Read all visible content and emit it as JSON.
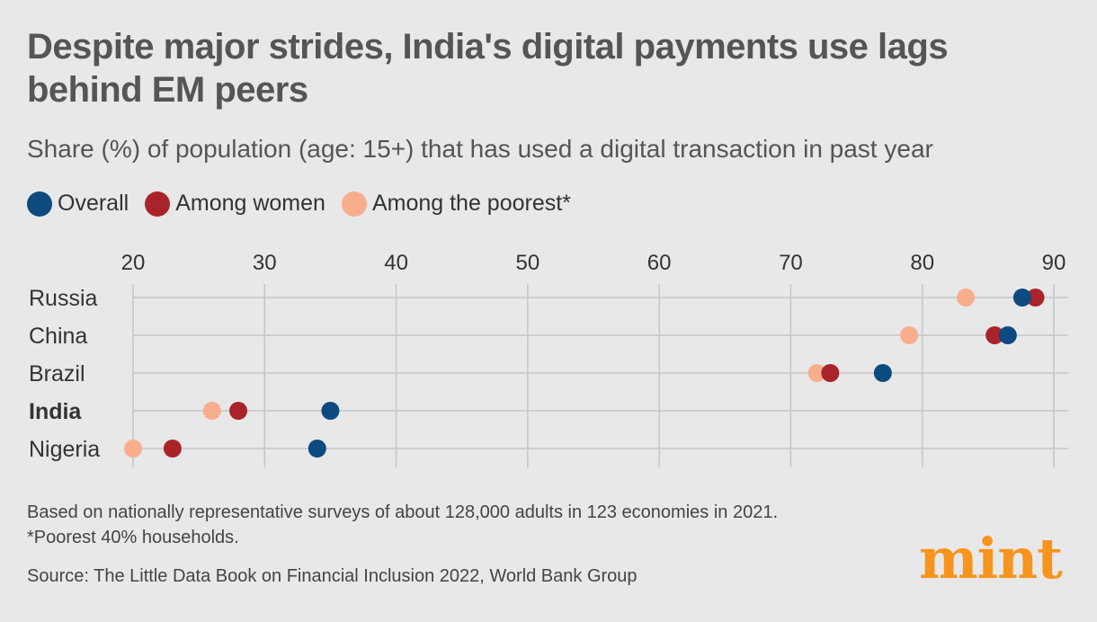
{
  "header": {
    "title": "Despite major strides, India's digital payments use lags behind EM peers",
    "subtitle": "Share (%) of population (age: 15+) that has used a digital transaction in past year"
  },
  "legend": [
    {
      "label": "Overall",
      "color": "#0d4a80"
    },
    {
      "label": "Among women",
      "color": "#a8242a"
    },
    {
      "label": "Among the poorest*",
      "color": "#f8ae8d"
    }
  ],
  "chart_data": {
    "type": "scatter",
    "categories": [
      "Russia",
      "China",
      "Brazil",
      "India",
      "Nigeria"
    ],
    "highlight_category": "India",
    "xticks": [
      20,
      30,
      40,
      50,
      60,
      70,
      80,
      90
    ],
    "xlim": [
      20,
      90
    ],
    "grid": true,
    "legend_position": "top-left",
    "series": [
      {
        "name": "Overall",
        "color": "#0d4a80",
        "values": [
          87.6,
          86.5,
          77,
          35,
          34
        ]
      },
      {
        "name": "Among women",
        "color": "#a8242a",
        "values": [
          88.6,
          85.5,
          73,
          28,
          23
        ]
      },
      {
        "name": "Among the poorest*",
        "color": "#f8ae8d",
        "values": [
          83.3,
          79,
          72,
          26,
          20
        ]
      }
    ]
  },
  "footer": {
    "note_line1": "Based on nationally representative surveys of about 128,000 adults in 123 economies in 2021.",
    "note_line2": "*Poorest 40% households.",
    "source": "Source: The Little Data Book on Financial Inclusion 2022, World Bank Group",
    "logo": "mint"
  }
}
